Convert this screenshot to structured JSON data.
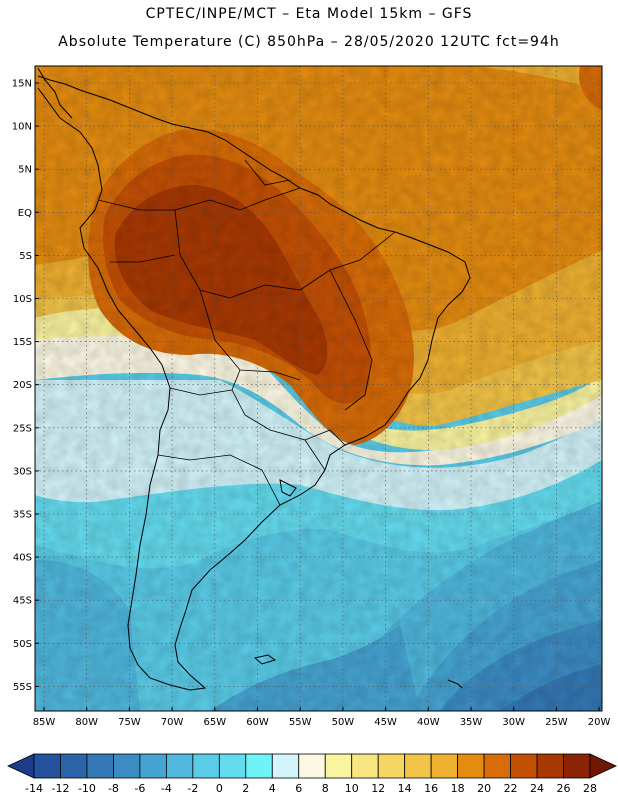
{
  "header": {
    "line1": "CPTEC/INPE/MCT –  Eta Model 15km – GFS",
    "line2": "Absolute Temperature (C) 850hPa – 28/05/2020 12UTC fct=94h"
  },
  "map": {
    "lat_labels": [
      "15N",
      "10N",
      "5N",
      "EQ",
      "5S",
      "10S",
      "15S",
      "20S",
      "25S",
      "30S",
      "35S",
      "40S",
      "45S",
      "50S",
      "55S"
    ],
    "lon_labels": [
      "85W",
      "80W",
      "75W",
      "70W",
      "65W",
      "60W",
      "55W",
      "50W",
      "45W",
      "40W",
      "35W",
      "30W",
      "25W",
      "20W"
    ]
  },
  "colorbar": {
    "labels": [
      "-14",
      "-12",
      "-10",
      "-8",
      "-6",
      "-4",
      "-2",
      "0",
      "2",
      "4",
      "6",
      "8",
      "10",
      "12",
      "14",
      "16",
      "18",
      "20",
      "22",
      "24",
      "26",
      "28"
    ],
    "colors": [
      "#1e3c8c",
      "#24529c",
      "#2c64aa",
      "#3478b6",
      "#3c8cc4",
      "#46a4d2",
      "#50b8de",
      "#5acce8",
      "#64dcf0",
      "#6ef4f8",
      "#d2f4fa",
      "#fcf8e4",
      "#faf4a0",
      "#f8e680",
      "#f6d662",
      "#f2c448",
      "#eeb030",
      "#e48c10",
      "#d86c08",
      "#c45004",
      "#a83802",
      "#8a2404",
      "#701804"
    ]
  }
}
